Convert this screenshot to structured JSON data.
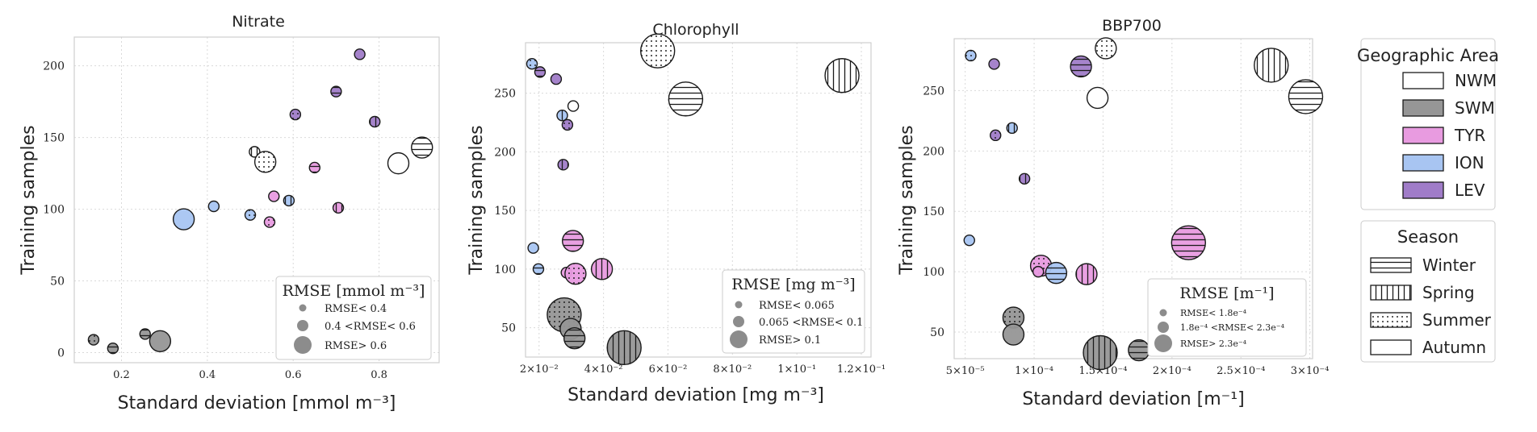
{
  "colors": {
    "NWM": "#ffffff",
    "SWM": "#969696",
    "TYR": "#e89be0",
    "ION": "#a8c5f2",
    "LEV": "#a07cc8",
    "edge": "#1a1a1a",
    "grid": "#d9d9d9",
    "frame": "#cfcfcf"
  },
  "legend_area": {
    "title": "Geographic Area",
    "items": [
      {
        "key": "NWM",
        "label": "NWM"
      },
      {
        "key": "SWM",
        "label": "SWM"
      },
      {
        "key": "TYR",
        "label": "TYR"
      },
      {
        "key": "ION",
        "label": "ION"
      },
      {
        "key": "LEV",
        "label": "LEV"
      }
    ]
  },
  "legend_season": {
    "title": "Season",
    "items": [
      {
        "key": "winter",
        "label": "Winter"
      },
      {
        "key": "spring",
        "label": "Spring"
      },
      {
        "key": "summer",
        "label": "Summer"
      },
      {
        "key": "autumn",
        "label": "Autumn"
      }
    ]
  },
  "chart_data": [
    {
      "type": "scatter",
      "title": "Nitrate",
      "xlabel": "Standard deviation [mmol m⁻³]",
      "ylabel": "Training samples",
      "xlim": [
        0.09,
        0.94
      ],
      "ylim": [
        -7,
        220
      ],
      "xticks": [
        {
          "v": 0.2,
          "label": "0.2"
        },
        {
          "v": 0.4,
          "label": "0.4"
        },
        {
          "v": 0.6,
          "label": "0.6"
        },
        {
          "v": 0.8,
          "label": "0.8"
        }
      ],
      "yticks": [
        {
          "v": 0,
          "label": "0"
        },
        {
          "v": 50,
          "label": "50"
        },
        {
          "v": 100,
          "label": "100"
        },
        {
          "v": 150,
          "label": "150"
        },
        {
          "v": 200,
          "label": "200"
        }
      ],
      "legend": {
        "title": "RMSE [mmol m⁻³]",
        "items": [
          "RMSE< 0.4",
          "0.4 <RMSE< 0.6",
          "RMSE> 0.6"
        ]
      },
      "points": [
        {
          "x": 0.135,
          "y": 9,
          "area": "SWM",
          "season": "summer",
          "rmse_class": 1
        },
        {
          "x": 0.18,
          "y": 3,
          "area": "SWM",
          "season": "winter",
          "rmse_class": 1
        },
        {
          "x": 0.255,
          "y": 13,
          "area": "SWM",
          "season": "winter",
          "rmse_class": 1
        },
        {
          "x": 0.29,
          "y": 8,
          "area": "SWM",
          "season": "autumn",
          "rmse_class": 2
        },
        {
          "x": 0.345,
          "y": 93,
          "area": "ION",
          "season": "autumn",
          "rmse_class": 2
        },
        {
          "x": 0.415,
          "y": 102,
          "area": "ION",
          "season": "autumn",
          "rmse_class": 1
        },
        {
          "x": 0.5,
          "y": 96,
          "area": "ION",
          "season": "summer",
          "rmse_class": 1
        },
        {
          "x": 0.51,
          "y": 140,
          "area": "NWM",
          "season": "spring",
          "rmse_class": 1
        },
        {
          "x": 0.535,
          "y": 133,
          "area": "NWM",
          "season": "summer",
          "rmse_class": 2
        },
        {
          "x": 0.545,
          "y": 91,
          "area": "TYR",
          "season": "summer",
          "rmse_class": 1
        },
        {
          "x": 0.555,
          "y": 109,
          "area": "TYR",
          "season": "autumn",
          "rmse_class": 1
        },
        {
          "x": 0.59,
          "y": 106,
          "area": "ION",
          "season": "spring",
          "rmse_class": 1
        },
        {
          "x": 0.605,
          "y": 166,
          "area": "LEV",
          "season": "summer",
          "rmse_class": 1
        },
        {
          "x": 0.65,
          "y": 129,
          "area": "TYR",
          "season": "winter",
          "rmse_class": 1
        },
        {
          "x": 0.7,
          "y": 182,
          "area": "LEV",
          "season": "winter",
          "rmse_class": 1
        },
        {
          "x": 0.705,
          "y": 101,
          "area": "TYR",
          "season": "spring",
          "rmse_class": 1
        },
        {
          "x": 0.755,
          "y": 208,
          "area": "LEV",
          "season": "autumn",
          "rmse_class": 1
        },
        {
          "x": 0.79,
          "y": 161,
          "area": "LEV",
          "season": "spring",
          "rmse_class": 1
        },
        {
          "x": 0.845,
          "y": 132,
          "area": "NWM",
          "season": "autumn",
          "rmse_class": 2
        },
        {
          "x": 0.9,
          "y": 143,
          "area": "NWM",
          "season": "winter",
          "rmse_class": 2
        }
      ]
    },
    {
      "type": "scatter",
      "title": "Chlorophyll",
      "xlabel": "Standard deviation [mg m⁻³]",
      "ylabel": "Training samples",
      "xlim": [
        0.0158,
        0.123
      ],
      "ylim": [
        25,
        293
      ],
      "xticks": [
        {
          "v": 0.02,
          "label": "2×10⁻²"
        },
        {
          "v": 0.04,
          "label": "4×10⁻²"
        },
        {
          "v": 0.06,
          "label": "6×10⁻²"
        },
        {
          "v": 0.08,
          "label": "8×10⁻²"
        },
        {
          "v": 0.1,
          "label": "1×10⁻¹"
        },
        {
          "v": 0.12,
          "label": "1.2×10⁻¹"
        }
      ],
      "yticks": [
        {
          "v": 50,
          "label": "50"
        },
        {
          "v": 100,
          "label": "100"
        },
        {
          "v": 150,
          "label": "150"
        },
        {
          "v": 200,
          "label": "200"
        },
        {
          "v": 250,
          "label": "250"
        }
      ],
      "legend": {
        "title": "RMSE [mg m⁻³]",
        "items": [
          "RMSE< 0.065",
          "0.065 <RMSE< 0.1",
          "RMSE> 0.1"
        ]
      },
      "points": [
        {
          "x": 0.0178,
          "y": 275,
          "area": "ION",
          "season": "summer",
          "rmse_class": 1
        },
        {
          "x": 0.0203,
          "y": 268,
          "area": "LEV",
          "season": "winter",
          "rmse_class": 1
        },
        {
          "x": 0.0253,
          "y": 262,
          "area": "LEV",
          "season": "autumn",
          "rmse_class": 1
        },
        {
          "x": 0.0306,
          "y": 239,
          "area": "NWM",
          "season": "autumn",
          "rmse_class": 1
        },
        {
          "x": 0.0272,
          "y": 231,
          "area": "ION",
          "season": "spring",
          "rmse_class": 1
        },
        {
          "x": 0.0288,
          "y": 223,
          "area": "LEV",
          "season": "summer",
          "rmse_class": 1
        },
        {
          "x": 0.0275,
          "y": 189,
          "area": "LEV",
          "season": "spring",
          "rmse_class": 1
        },
        {
          "x": 0.0182,
          "y": 118,
          "area": "ION",
          "season": "autumn",
          "rmse_class": 1
        },
        {
          "x": 0.0198,
          "y": 100,
          "area": "ION",
          "season": "winter",
          "rmse_class": 1
        },
        {
          "x": 0.0305,
          "y": 124,
          "area": "TYR",
          "season": "winter",
          "rmse_class": 2
        },
        {
          "x": 0.0285,
          "y": 97,
          "area": "TYR",
          "season": "autumn",
          "rmse_class": 1
        },
        {
          "x": 0.0313,
          "y": 96,
          "area": "TYR",
          "season": "summer",
          "rmse_class": 2
        },
        {
          "x": 0.0395,
          "y": 100,
          "area": "TYR",
          "season": "spring",
          "rmse_class": 2
        },
        {
          "x": 0.0278,
          "y": 61,
          "area": "SWM",
          "season": "summer",
          "rmse_class": 3
        },
        {
          "x": 0.0298,
          "y": 49,
          "area": "SWM",
          "season": "autumn",
          "rmse_class": 2
        },
        {
          "x": 0.031,
          "y": 41,
          "area": "SWM",
          "season": "winter",
          "rmse_class": 2
        },
        {
          "x": 0.0464,
          "y": 33,
          "area": "SWM",
          "season": "spring",
          "rmse_class": 3
        },
        {
          "x": 0.0568,
          "y": 286,
          "area": "NWM",
          "season": "summer",
          "rmse_class": 3
        },
        {
          "x": 0.0655,
          "y": 245,
          "area": "NWM",
          "season": "winter",
          "rmse_class": 3
        },
        {
          "x": 0.114,
          "y": 265,
          "area": "NWM",
          "season": "spring",
          "rmse_class": 3
        }
      ]
    },
    {
      "type": "scatter",
      "title": "BBP700",
      "xlabel": "Standard deviation [m⁻¹]",
      "ylabel": "Training samples",
      "xlim": [
        4.2e-05,
        0.000302
      ],
      "ylim": [
        28,
        293
      ],
      "xticks": [
        {
          "v": 5e-05,
          "label": "5×10⁻⁵"
        },
        {
          "v": 0.0001,
          "label": "1×10⁻⁴"
        },
        {
          "v": 0.00015,
          "label": "1.5×10⁻⁴"
        },
        {
          "v": 0.0002,
          "label": "2×10⁻⁴"
        },
        {
          "v": 0.00025,
          "label": "2.5×10⁻⁴"
        },
        {
          "v": 0.0003,
          "label": "3×10⁻⁴"
        }
      ],
      "yticks": [
        {
          "v": 50,
          "label": "50"
        },
        {
          "v": 100,
          "label": "100"
        },
        {
          "v": 150,
          "label": "150"
        },
        {
          "v": 200,
          "label": "200"
        },
        {
          "v": 250,
          "label": "250"
        }
      ],
      "legend": {
        "title": "RMSE [m⁻¹]",
        "items": [
          "RMSE< 1.8e⁻⁴",
          "1.8e⁻⁴ <RMSE< 2.3e⁻⁴",
          "RMSE> 2.3e⁻⁴"
        ]
      },
      "points": [
        {
          "x": 5.4e-05,
          "y": 279,
          "area": "ION",
          "season": "summer",
          "rmse_class": 1
        },
        {
          "x": 7.1e-05,
          "y": 272,
          "area": "LEV",
          "season": "autumn",
          "rmse_class": 1
        },
        {
          "x": 7.2e-05,
          "y": 213,
          "area": "LEV",
          "season": "summer",
          "rmse_class": 1
        },
        {
          "x": 8.4e-05,
          "y": 219,
          "area": "ION",
          "season": "spring",
          "rmse_class": 1
        },
        {
          "x": 5.3e-05,
          "y": 126,
          "area": "ION",
          "season": "autumn",
          "rmse_class": 1
        },
        {
          "x": 9.3e-05,
          "y": 177,
          "area": "LEV",
          "season": "spring",
          "rmse_class": 1
        },
        {
          "x": 8.5e-05,
          "y": 62,
          "area": "SWM",
          "season": "summer",
          "rmse_class": 2
        },
        {
          "x": 8.5e-05,
          "y": 48,
          "area": "SWM",
          "season": "autumn",
          "rmse_class": 2
        },
        {
          "x": 0.000105,
          "y": 105,
          "area": "TYR",
          "season": "summer",
          "rmse_class": 2
        },
        {
          "x": 0.000103,
          "y": 100,
          "area": "TYR",
          "season": "autumn",
          "rmse_class": 1
        },
        {
          "x": 0.000116,
          "y": 99,
          "area": "ION",
          "season": "winter",
          "rmse_class": 2
        },
        {
          "x": 0.000138,
          "y": 98,
          "area": "TYR",
          "season": "spring",
          "rmse_class": 2
        },
        {
          "x": 0.000134,
          "y": 270,
          "area": "LEV",
          "season": "winter",
          "rmse_class": 2
        },
        {
          "x": 0.000152,
          "y": 285,
          "area": "NWM",
          "season": "summer",
          "rmse_class": 2
        },
        {
          "x": 0.000146,
          "y": 244,
          "area": "NWM",
          "season": "autumn",
          "rmse_class": 2
        },
        {
          "x": 0.000148,
          "y": 33,
          "area": "SWM",
          "season": "spring",
          "rmse_class": 3
        },
        {
          "x": 0.000176,
          "y": 35,
          "area": "SWM",
          "season": "winter",
          "rmse_class": 2
        },
        {
          "x": 0.000212,
          "y": 124,
          "area": "TYR",
          "season": "winter",
          "rmse_class": 3
        },
        {
          "x": 0.000272,
          "y": 271,
          "area": "NWM",
          "season": "spring",
          "rmse_class": 3
        },
        {
          "x": 0.000297,
          "y": 245,
          "area": "NWM",
          "season": "winter",
          "rmse_class": 3
        }
      ]
    }
  ]
}
